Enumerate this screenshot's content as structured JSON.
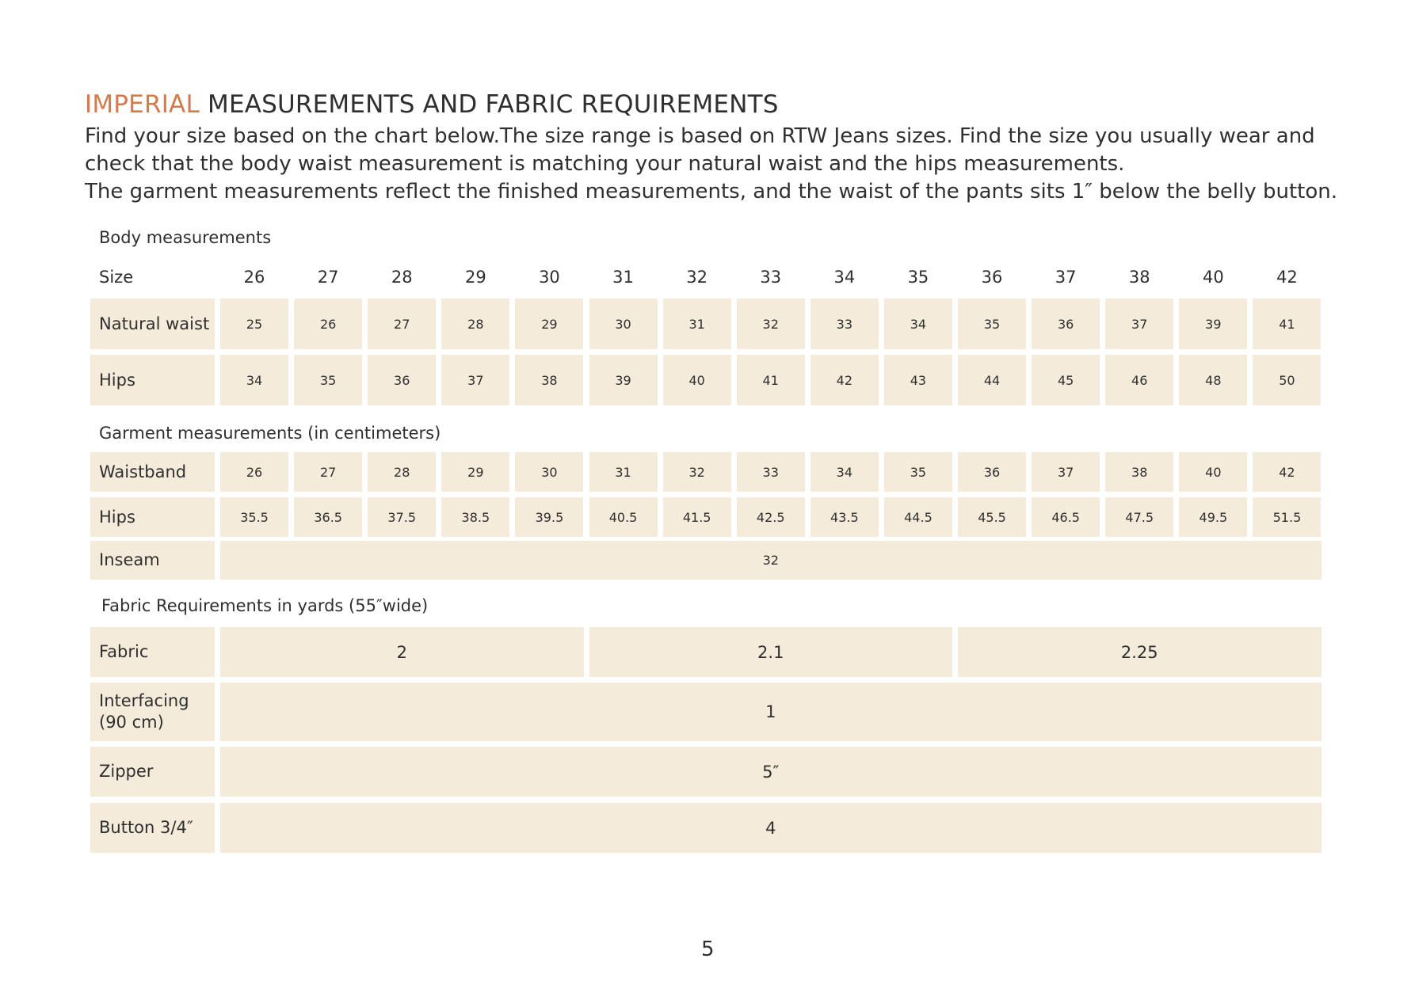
{
  "header": {
    "title_accent": "IMPERIAL",
    "title": "MEASUREMENTS AND FABRIC REQUIREMENTS",
    "intro": [
      "Find your size based on the chart below.The size range is based on RTW Jeans sizes. Find the size you usually wear and check that the body waist measurement is matching your natural waist and the hips measurements.",
      "The garment measurements reflect the finished measurements, and the waist of the pants sits 1″ below the belly button."
    ]
  },
  "body": {
    "label": "Body measurements",
    "size_label": "Size",
    "sizes": [
      26,
      27,
      28,
      29,
      30,
      31,
      32,
      33,
      34,
      35,
      36,
      37,
      38,
      40,
      42
    ],
    "rows": [
      {
        "label": "Natural waist",
        "values": [
          25,
          26,
          27,
          28,
          29,
          30,
          31,
          32,
          33,
          34,
          35,
          36,
          37,
          39,
          41
        ]
      },
      {
        "label": "Hips",
        "values": [
          34,
          35,
          36,
          37,
          38,
          39,
          40,
          41,
          42,
          43,
          44,
          45,
          46,
          48,
          50
        ]
      }
    ]
  },
  "garment": {
    "label": "Garment measurements (in centimeters)",
    "rows": [
      {
        "label": "Waistband",
        "values": [
          26,
          27,
          28,
          29,
          30,
          31,
          32,
          33,
          34,
          35,
          36,
          37,
          38,
          40,
          42
        ]
      },
      {
        "label": "Hips",
        "values": [
          35.5,
          36.5,
          37.5,
          38.5,
          39.5,
          40.5,
          41.5,
          42.5,
          43.5,
          44.5,
          45.5,
          46.5,
          47.5,
          49.5,
          51.5
        ]
      },
      {
        "label": "Inseam",
        "values": [
          32
        ]
      }
    ]
  },
  "fabric": {
    "label": "Fabric Requirements in yards (55″wide)",
    "rows": [
      {
        "label": "Fabric",
        "values": [
          2,
          2.1,
          2.25
        ]
      },
      {
        "label": "Interfacing (90 cm)",
        "values": [
          1
        ]
      },
      {
        "label": "Zipper",
        "values": [
          "5″"
        ]
      },
      {
        "label": "Button 3/4″",
        "values": [
          4
        ]
      }
    ]
  },
  "page_number": 5
}
